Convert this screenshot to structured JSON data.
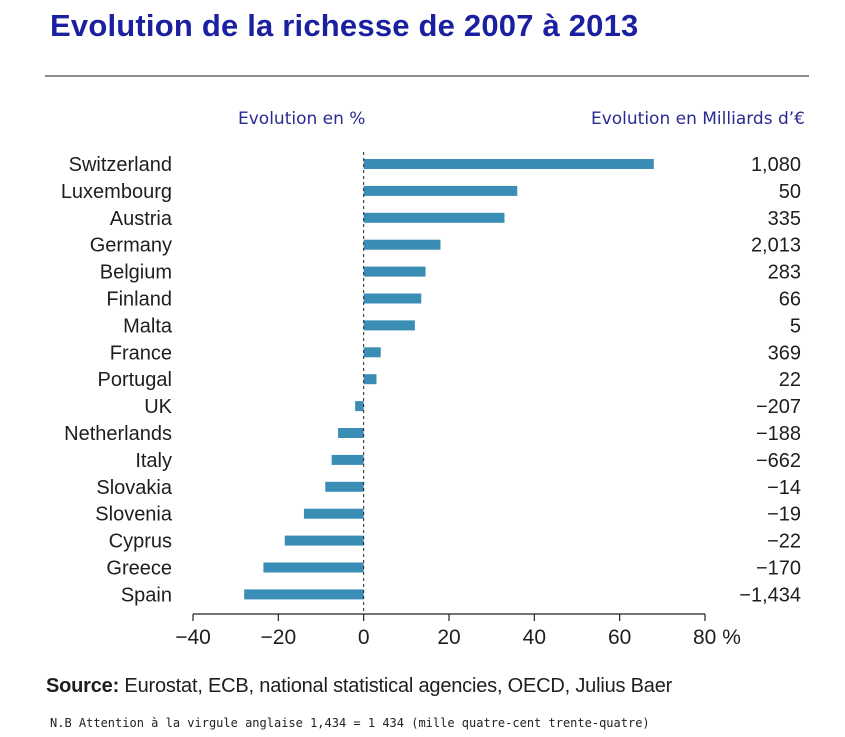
{
  "title": "Evolution de la richesse de 2007 à 2013",
  "headers": {
    "left": "Evolution en %",
    "right": "Evolution en Milliards d’€"
  },
  "colors": {
    "bar": "#3a8db5",
    "title": "#1a20a0",
    "header": "#2a2a90",
    "text": "#1e1e1e",
    "axis": "#222222"
  },
  "chart_data": {
    "type": "bar",
    "orientation": "horizontal",
    "categories": [
      "Switzerland",
      "Luxembourg",
      "Austria",
      "Germany",
      "Belgium",
      "Finland",
      "Malta",
      "France",
      "Portugal",
      "UK",
      "Netherlands",
      "Italy",
      "Slovakia",
      "Slovenia",
      "Cyprus",
      "Greece",
      "Spain"
    ],
    "series": [
      {
        "values": [
          68,
          36,
          33,
          18,
          14.5,
          13.5,
          12,
          4,
          3,
          -2,
          -6,
          -7.5,
          -9,
          -14,
          -18.5,
          -23.5,
          -28
        ]
      }
    ],
    "value_labels": [
      "1,080",
      "50",
      "335",
      "2,013",
      "283",
      "66",
      "5",
      "369",
      "22",
      "−207",
      "−188",
      "−662",
      "−14",
      "−19",
      "−22",
      "−170",
      "−1,434"
    ],
    "xlim": [
      -40,
      80
    ],
    "xticks": [
      -40,
      -20,
      0,
      20,
      40,
      60,
      80
    ],
    "xtick_labels": [
      "−40",
      "−20",
      "0",
      "20",
      "40",
      "60",
      "80 %"
    ],
    "grid": false
  },
  "source": {
    "label": "Source:",
    "text": " Eurostat, ECB, national statistical agencies, OECD, Julius Baer"
  },
  "note": "N.B Attention à la virgule anglaise 1,434 = 1 434 (mille quatre-cent trente-quatre)"
}
